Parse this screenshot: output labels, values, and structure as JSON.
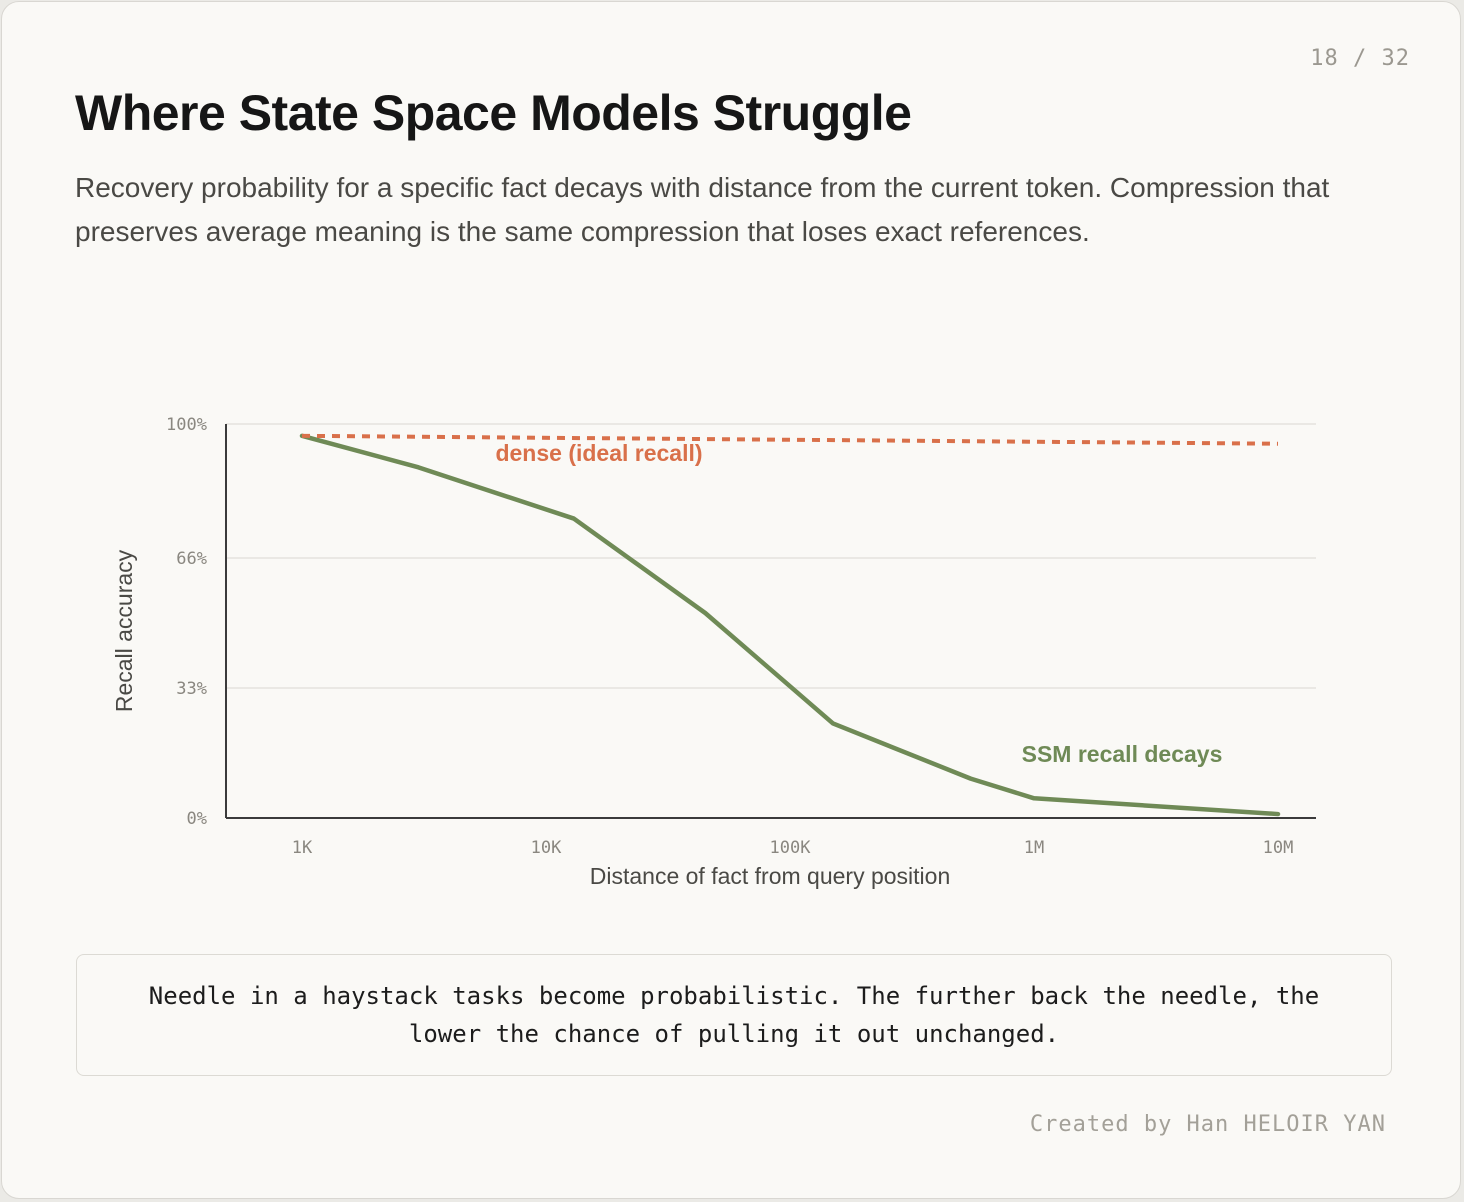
{
  "slide": {
    "page_number": "18 / 32",
    "title": "Where State Space Models Struggle",
    "subtitle": "Recovery probability for a specific fact decays with distance from the current token. Compression that preserves average meaning is the same compression that loses exact references.",
    "callout": "Needle in a haystack tasks become probabilistic. The further back the needle, the lower the chance of pulling it out unchanged.",
    "credit": "Created by Han HELOIR YAN"
  },
  "colors": {
    "dense": "#d9704a",
    "ssm": "#6f8a56",
    "axis": "#3b3b3b",
    "grid": "#e4e2dd",
    "tick_label": "#8a8780"
  },
  "chart_data": {
    "type": "line",
    "xlabel": "Distance of fact from query position",
    "ylabel": "Recall accuracy",
    "x_scale": "log",
    "x_ticks": [
      {
        "value": 1000,
        "label": "1K"
      },
      {
        "value": 10000,
        "label": "10K"
      },
      {
        "value": 100000,
        "label": "100K"
      },
      {
        "value": 1000000,
        "label": "1M"
      },
      {
        "value": 10000000,
        "label": "10M"
      }
    ],
    "y_ticks": [
      {
        "value": 0,
        "label": "0%"
      },
      {
        "value": 33,
        "label": "33%"
      },
      {
        "value": 66,
        "label": "66%"
      },
      {
        "value": 100,
        "label": "100%"
      }
    ],
    "ylim": [
      0,
      100
    ],
    "grid": "horizontal",
    "series": [
      {
        "name": "dense (ideal recall)",
        "style": "dotted",
        "points": [
          [
            1000,
            97
          ],
          [
            10000000,
            95
          ]
        ]
      },
      {
        "name": "SSM recall decays",
        "style": "solid",
        "points": [
          [
            1000,
            97
          ],
          [
            3000,
            89
          ],
          [
            13000,
            76
          ],
          [
            45000,
            52
          ],
          [
            150000,
            24
          ],
          [
            550000,
            10
          ],
          [
            1000000,
            5
          ],
          [
            10000000,
            1
          ]
        ]
      }
    ]
  }
}
